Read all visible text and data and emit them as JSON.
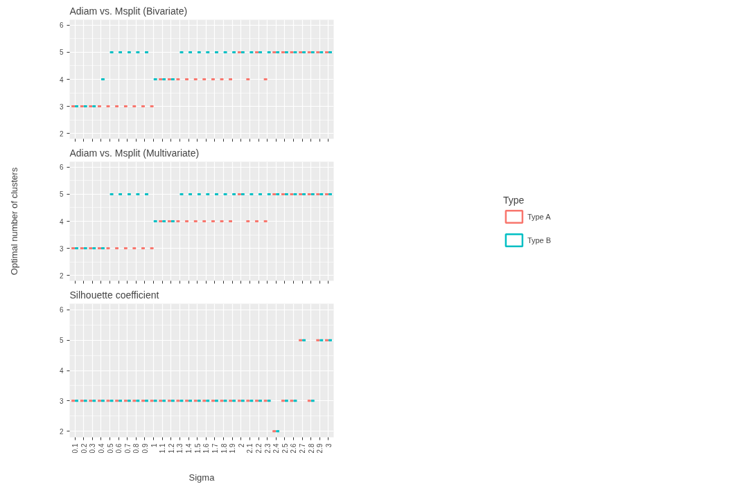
{
  "chart_data": [
    {
      "type": "box",
      "title": "Adiam vs. Msplit (Bivariate)",
      "categories": [
        "0.1",
        "0.2",
        "0.3",
        "0.4",
        "0.5",
        "0.6",
        "0.7",
        "0.8",
        "0.9",
        "1",
        "1.1",
        "1.2",
        "1.3",
        "1.4",
        "1.5",
        "1.6",
        "1.7",
        "1.8",
        "1.9",
        "2",
        "2.1",
        "2.2",
        "2.3",
        "2.4",
        "2.5",
        "2.6",
        "2.7",
        "2.8",
        "2.9",
        "3"
      ],
      "ylim": [
        1.8,
        6.2
      ],
      "yticks": [
        2,
        3,
        4,
        5,
        6
      ],
      "grid": true,
      "tick_labels": "y",
      "series": [
        {
          "color": "#f8766d",
          "boxes": [
            {
              "low": 3,
              "q1": 3,
              "median": 3,
              "q3": 3,
              "high": 3
            },
            {
              "low": 3,
              "q1": 3,
              "median": 3,
              "q3": 3,
              "high": 3
            },
            {
              "low": 3,
              "q1": 3,
              "median": 3,
              "q3": 3,
              "high": 3
            },
            {
              "low": 3,
              "q1": 3,
              "median": 3,
              "q3": 3,
              "high": 3
            },
            {
              "low": 3,
              "q1": 3,
              "median": 3,
              "q3": 3,
              "high": 3
            },
            {
              "low": 3,
              "q1": 3,
              "median": 3,
              "q3": 3,
              "high": 3
            },
            {
              "low": 3,
              "q1": 3,
              "median": 3,
              "q3": 3,
              "high": 3
            },
            {
              "low": 3,
              "q1": 3,
              "median": 3,
              "q3": 3,
              "high": 3
            },
            {
              "low": 3,
              "q1": 3,
              "median": 3,
              "q3": 3,
              "high": 3
            },
            {
              "low": 3,
              "q1": 3,
              "median": 3,
              "q3": 3,
              "high": 3
            },
            {
              "low": 4,
              "q1": 4,
              "median": 4,
              "q3": 4,
              "high": 4
            },
            {
              "low": 4,
              "q1": 4,
              "median": 4,
              "q3": 4,
              "high": 4
            },
            {
              "low": 4,
              "q1": 4,
              "median": 4,
              "q3": 4,
              "high": 4
            },
            {
              "low": 4,
              "q1": 4,
              "median": 4,
              "q3": 4,
              "high": 4
            },
            {
              "low": 4,
              "q1": 4,
              "median": 4,
              "q3": 4,
              "high": 4
            },
            {
              "low": 4,
              "q1": 4,
              "median": 4,
              "q3": 4,
              "high": 4
            },
            {
              "low": 4,
              "q1": 4,
              "median": 4,
              "q3": 4,
              "high": 4
            },
            {
              "low": 4,
              "q1": 4,
              "median": 4,
              "q3": 4,
              "high": 4
            },
            {
              "low": 4,
              "q1": 4,
              "median": 4,
              "q3": 4,
              "high": 4
            },
            {
              "low": 5,
              "q1": 5,
              "median": 5,
              "q3": 5,
              "high": 5
            },
            {
              "low": 4,
              "q1": 4,
              "median": 4,
              "q3": 4,
              "high": 4
            },
            {
              "low": 5,
              "q1": 5,
              "median": 5,
              "q3": 5,
              "high": 5
            },
            {
              "low": 4,
              "q1": 4,
              "median": 4,
              "q3": 4,
              "high": 4
            },
            {
              "low": 5,
              "q1": 5,
              "median": 5,
              "q3": 5,
              "high": 5
            },
            {
              "low": 5,
              "q1": 5,
              "median": 5,
              "q3": 5,
              "high": 5
            },
            {
              "low": 5,
              "q1": 5,
              "median": 5,
              "q3": 5,
              "high": 5
            },
            {
              "low": 5,
              "q1": 5,
              "median": 5,
              "q3": 5,
              "high": 5
            },
            {
              "low": 5,
              "q1": 5,
              "median": 5,
              "q3": 5,
              "high": 5
            },
            {
              "low": 5,
              "q1": 5,
              "median": 5,
              "q3": 5,
              "high": 5
            },
            {
              "low": 5,
              "q1": 5,
              "median": 5,
              "q3": 5,
              "high": 5
            }
          ]
        },
        {
          "color": "#00bfc4",
          "boxes": [
            {
              "low": 3,
              "q1": 3,
              "median": 3,
              "q3": 3,
              "high": 3
            },
            {
              "low": 3,
              "q1": 3,
              "median": 3,
              "q3": 3,
              "high": 3
            },
            {
              "low": 3,
              "q1": 3,
              "median": 3,
              "q3": 3,
              "high": 3
            },
            {
              "low": 4,
              "q1": 4,
              "median": 4,
              "q3": 4,
              "high": 4
            },
            {
              "low": 5,
              "q1": 5,
              "median": 5,
              "q3": 5,
              "high": 5
            },
            {
              "low": 5,
              "q1": 5,
              "median": 5,
              "q3": 5,
              "high": 5
            },
            {
              "low": 5,
              "q1": 5,
              "median": 5,
              "q3": 5,
              "high": 5
            },
            {
              "low": 5,
              "q1": 5,
              "median": 5,
              "q3": 5,
              "high": 5
            },
            {
              "low": 5,
              "q1": 5,
              "median": 5,
              "q3": 5,
              "high": 5
            },
            {
              "low": 4,
              "q1": 4,
              "median": 4,
              "q3": 4,
              "high": 4
            },
            {
              "low": 4,
              "q1": 4,
              "median": 4,
              "q3": 4,
              "high": 4
            },
            {
              "low": 4,
              "q1": 4,
              "median": 4,
              "q3": 4,
              "high": 4
            },
            {
              "low": 5,
              "q1": 5,
              "median": 5,
              "q3": 5,
              "high": 5
            },
            {
              "low": 5,
              "q1": 5,
              "median": 5,
              "q3": 5,
              "high": 5
            },
            {
              "low": 5,
              "q1": 5,
              "median": 5,
              "q3": 5,
              "high": 5
            },
            {
              "low": 5,
              "q1": 5,
              "median": 5,
              "q3": 5,
              "high": 5
            },
            {
              "low": 5,
              "q1": 5,
              "median": 5,
              "q3": 5,
              "high": 5
            },
            {
              "low": 5,
              "q1": 5,
              "median": 5,
              "q3": 5,
              "high": 5
            },
            {
              "low": 5,
              "q1": 5,
              "median": 5,
              "q3": 5,
              "high": 5
            },
            {
              "low": 5,
              "q1": 5,
              "median": 5,
              "q3": 5,
              "high": 5
            },
            {
              "low": 5,
              "q1": 5,
              "median": 5,
              "q3": 5,
              "high": 5
            },
            {
              "low": 5,
              "q1": 5,
              "median": 5,
              "q3": 5,
              "high": 5
            },
            {
              "low": 5,
              "q1": 5,
              "median": 5,
              "q3": 5,
              "high": 5
            },
            {
              "low": 5,
              "q1": 5,
              "median": 5,
              "q3": 5,
              "high": 5
            },
            {
              "low": 5,
              "q1": 5,
              "median": 5,
              "q3": 5,
              "high": 5
            },
            {
              "low": 5,
              "q1": 5,
              "median": 5,
              "q3": 5,
              "high": 5
            },
            {
              "low": 5,
              "q1": 5,
              "median": 5,
              "q3": 5,
              "high": 5
            },
            {
              "low": 5,
              "q1": 5,
              "median": 5,
              "q3": 5,
              "high": 5
            },
            {
              "low": 5,
              "q1": 5,
              "median": 5,
              "q3": 5,
              "high": 5
            },
            {
              "low": 5,
              "q1": 5,
              "median": 5,
              "q3": 5,
              "high": 5
            }
          ]
        }
      ]
    },
    {
      "type": "box",
      "title": "Adiam vs. Msplit (Multivariate)",
      "ylabel": "Optimal number of clusters",
      "legend": "right",
      "legend_title": "Type",
      "categories": [
        "0.1",
        "0.2",
        "0.3",
        "0.4",
        "0.5",
        "0.6",
        "0.7",
        "0.8",
        "0.9",
        "1",
        "1.1",
        "1.2",
        "1.3",
        "1.4",
        "1.5",
        "1.6",
        "1.7",
        "1.8",
        "1.9",
        "2",
        "2.1",
        "2.2",
        "2.3",
        "2.4",
        "2.5",
        "2.6",
        "2.7",
        "2.8",
        "2.9",
        "3"
      ],
      "ylim": [
        1.8,
        6.2
      ],
      "yticks": [
        2,
        3,
        4,
        5,
        6
      ],
      "grid": true,
      "tick_labels": "y",
      "series": [
        {
          "name": "Type A",
          "color": "#f8766d",
          "boxes": [
            {
              "low": 3,
              "q1": 3,
              "median": 3,
              "q3": 3,
              "high": 3
            },
            {
              "low": 3,
              "q1": 3,
              "median": 3,
              "q3": 3,
              "high": 3
            },
            {
              "low": 3,
              "q1": 3,
              "median": 3,
              "q3": 3,
              "high": 3
            },
            {
              "low": 3,
              "q1": 3,
              "median": 3,
              "q3": 3,
              "high": 3
            },
            {
              "low": 3,
              "q1": 3,
              "median": 3,
              "q3": 3,
              "high": 3
            },
            {
              "low": 3,
              "q1": 3,
              "median": 3,
              "q3": 3,
              "high": 3
            },
            {
              "low": 3,
              "q1": 3,
              "median": 3,
              "q3": 3,
              "high": 3
            },
            {
              "low": 3,
              "q1": 3,
              "median": 3,
              "q3": 3,
              "high": 3
            },
            {
              "low": 3,
              "q1": 3,
              "median": 3,
              "q3": 3,
              "high": 3
            },
            {
              "low": 3,
              "q1": 3,
              "median": 3,
              "q3": 3,
              "high": 3
            },
            {
              "low": 4,
              "q1": 4,
              "median": 4,
              "q3": 4,
              "high": 4
            },
            {
              "low": 4,
              "q1": 4,
              "median": 4,
              "q3": 4,
              "high": 4
            },
            {
              "low": 4,
              "q1": 4,
              "median": 4,
              "q3": 4,
              "high": 4
            },
            {
              "low": 4,
              "q1": 4,
              "median": 4,
              "q3": 4,
              "high": 4
            },
            {
              "low": 4,
              "q1": 4,
              "median": 4,
              "q3": 4,
              "high": 4
            },
            {
              "low": 4,
              "q1": 4,
              "median": 4,
              "q3": 4,
              "high": 4
            },
            {
              "low": 4,
              "q1": 4,
              "median": 4,
              "q3": 4,
              "high": 4
            },
            {
              "low": 4,
              "q1": 4,
              "median": 4,
              "q3": 4,
              "high": 4
            },
            {
              "low": 4,
              "q1": 4,
              "median": 4,
              "q3": 4,
              "high": 4
            },
            {
              "low": 5,
              "q1": 5,
              "median": 5,
              "q3": 5,
              "high": 5
            },
            {
              "low": 4,
              "q1": 4,
              "median": 4,
              "q3": 4,
              "high": 4
            },
            {
              "low": 4,
              "q1": 4,
              "median": 4,
              "q3": 4,
              "high": 4
            },
            {
              "low": 4,
              "q1": 4,
              "median": 4,
              "q3": 4,
              "high": 4
            },
            {
              "low": 5,
              "q1": 5,
              "median": 5,
              "q3": 5,
              "high": 5
            },
            {
              "low": 5,
              "q1": 5,
              "median": 5,
              "q3": 5,
              "high": 5
            },
            {
              "low": 5,
              "q1": 5,
              "median": 5,
              "q3": 5,
              "high": 5
            },
            {
              "low": 5,
              "q1": 5,
              "median": 5,
              "q3": 5,
              "high": 5
            },
            {
              "low": 5,
              "q1": 5,
              "median": 5,
              "q3": 5,
              "high": 5
            },
            {
              "low": 5,
              "q1": 5,
              "median": 5,
              "q3": 5,
              "high": 5
            },
            {
              "low": 5,
              "q1": 5,
              "median": 5,
              "q3": 5,
              "high": 5
            }
          ]
        },
        {
          "name": "Type B",
          "color": "#00bfc4",
          "boxes": [
            {
              "low": 3,
              "q1": 3,
              "median": 3,
              "q3": 3,
              "high": 3
            },
            {
              "low": 3,
              "q1": 3,
              "median": 3,
              "q3": 3,
              "high": 3
            },
            {
              "low": 3,
              "q1": 3,
              "median": 3,
              "q3": 3,
              "high": 3
            },
            {
              "low": 3,
              "q1": 3,
              "median": 3,
              "q3": 3,
              "high": 3
            },
            {
              "low": 5,
              "q1": 5,
              "median": 5,
              "q3": 5,
              "high": 5
            },
            {
              "low": 5,
              "q1": 5,
              "median": 5,
              "q3": 5,
              "high": 5
            },
            {
              "low": 5,
              "q1": 5,
              "median": 5,
              "q3": 5,
              "high": 5
            },
            {
              "low": 5,
              "q1": 5,
              "median": 5,
              "q3": 5,
              "high": 5
            },
            {
              "low": 5,
              "q1": 5,
              "median": 5,
              "q3": 5,
              "high": 5
            },
            {
              "low": 4,
              "q1": 4,
              "median": 4,
              "q3": 4,
              "high": 4
            },
            {
              "low": 4,
              "q1": 4,
              "median": 4,
              "q3": 4,
              "high": 4
            },
            {
              "low": 4,
              "q1": 4,
              "median": 4,
              "q3": 4,
              "high": 4
            },
            {
              "low": 5,
              "q1": 5,
              "median": 5,
              "q3": 5,
              "high": 5
            },
            {
              "low": 5,
              "q1": 5,
              "median": 5,
              "q3": 5,
              "high": 5
            },
            {
              "low": 5,
              "q1": 5,
              "median": 5,
              "q3": 5,
              "high": 5
            },
            {
              "low": 5,
              "q1": 5,
              "median": 5,
              "q3": 5,
              "high": 5
            },
            {
              "low": 5,
              "q1": 5,
              "median": 5,
              "q3": 5,
              "high": 5
            },
            {
              "low": 5,
              "q1": 5,
              "median": 5,
              "q3": 5,
              "high": 5
            },
            {
              "low": 5,
              "q1": 5,
              "median": 5,
              "q3": 5,
              "high": 5
            },
            {
              "low": 5,
              "q1": 5,
              "median": 5,
              "q3": 5,
              "high": 5
            },
            {
              "low": 5,
              "q1": 5,
              "median": 5,
              "q3": 5,
              "high": 5
            },
            {
              "low": 5,
              "q1": 5,
              "median": 5,
              "q3": 5,
              "high": 5
            },
            {
              "low": 5,
              "q1": 5,
              "median": 5,
              "q3": 5,
              "high": 5
            },
            {
              "low": 5,
              "q1": 5,
              "median": 5,
              "q3": 5,
              "high": 5
            },
            {
              "low": 5,
              "q1": 5,
              "median": 5,
              "q3": 5,
              "high": 5
            },
            {
              "low": 5,
              "q1": 5,
              "median": 5,
              "q3": 5,
              "high": 5
            },
            {
              "low": 5,
              "q1": 5,
              "median": 5,
              "q3": 5,
              "high": 5
            },
            {
              "low": 5,
              "q1": 5,
              "median": 5,
              "q3": 5,
              "high": 5
            },
            {
              "low": 5,
              "q1": 5,
              "median": 5,
              "q3": 5,
              "high": 5
            },
            {
              "low": 5,
              "q1": 5,
              "median": 5,
              "q3": 5,
              "high": 5
            }
          ]
        }
      ]
    },
    {
      "type": "box",
      "title": "Silhouette coefficient",
      "xlabel": "Sigma",
      "categories": [
        "0.1",
        "0.2",
        "0.3",
        "0.4",
        "0.5",
        "0.6",
        "0.7",
        "0.8",
        "0.9",
        "1",
        "1.1",
        "1.2",
        "1.3",
        "1.4",
        "1.5",
        "1.6",
        "1.7",
        "1.8",
        "1.9",
        "2",
        "2.1",
        "2.2",
        "2.3",
        "2.4",
        "2.5",
        "2.6",
        "2.7",
        "2.8",
        "2.9",
        "3"
      ],
      "ylim": [
        1.8,
        6.2
      ],
      "yticks": [
        2,
        3,
        4,
        5,
        6
      ],
      "grid": true,
      "series": [
        {
          "color": "#f8766d",
          "boxes": [
            {
              "low": 3,
              "q1": 3,
              "median": 3,
              "q3": 3,
              "high": 3
            },
            {
              "low": 3,
              "q1": 3,
              "median": 3,
              "q3": 3,
              "high": 3
            },
            {
              "low": 3,
              "q1": 3,
              "median": 3,
              "q3": 3,
              "high": 3
            },
            {
              "low": 3,
              "q1": 3,
              "median": 3,
              "q3": 3,
              "high": 3
            },
            {
              "low": 3,
              "q1": 3,
              "median": 3,
              "q3": 3,
              "high": 3
            },
            {
              "low": 3,
              "q1": 3,
              "median": 3,
              "q3": 3,
              "high": 3
            },
            {
              "low": 3,
              "q1": 3,
              "median": 3,
              "q3": 3,
              "high": 3
            },
            {
              "low": 3,
              "q1": 3,
              "median": 3,
              "q3": 3,
              "high": 3
            },
            {
              "low": 3,
              "q1": 3,
              "median": 3,
              "q3": 3,
              "high": 3
            },
            {
              "low": 3,
              "q1": 3,
              "median": 3,
              "q3": 3,
              "high": 3
            },
            {
              "low": 3,
              "q1": 3,
              "median": 3,
              "q3": 3,
              "high": 3
            },
            {
              "low": 3,
              "q1": 3,
              "median": 3,
              "q3": 3,
              "high": 3
            },
            {
              "low": 3,
              "q1": 3,
              "median": 3,
              "q3": 3,
              "high": 3
            },
            {
              "low": 3,
              "q1": 3,
              "median": 3,
              "q3": 3,
              "high": 3
            },
            {
              "low": 3,
              "q1": 3,
              "median": 3,
              "q3": 3,
              "high": 3
            },
            {
              "low": 3,
              "q1": 3,
              "median": 3,
              "q3": 3,
              "high": 3
            },
            {
              "low": 3,
              "q1": 3,
              "median": 3,
              "q3": 3,
              "high": 3
            },
            {
              "low": 3,
              "q1": 3,
              "median": 3,
              "q3": 3,
              "high": 3
            },
            {
              "low": 3,
              "q1": 3,
              "median": 3,
              "q3": 3,
              "high": 3
            },
            {
              "low": 3,
              "q1": 3,
              "median": 3,
              "q3": 3,
              "high": 3
            },
            {
              "low": 3,
              "q1": 3,
              "median": 3,
              "q3": 3,
              "high": 3
            },
            {
              "low": 3,
              "q1": 3,
              "median": 3,
              "q3": 3,
              "high": 3
            },
            {
              "low": 3,
              "q1": 3,
              "median": 3,
              "q3": 3,
              "high": 3
            },
            {
              "low": 2,
              "q1": 2,
              "median": 2,
              "q3": 2,
              "high": 2
            },
            {
              "low": 3,
              "q1": 3,
              "median": 3,
              "q3": 3,
              "high": 3
            },
            {
              "low": 3,
              "q1": 3,
              "median": 3,
              "q3": 3,
              "high": 3
            },
            {
              "low": 5,
              "q1": 5,
              "median": 5,
              "q3": 5,
              "high": 5
            },
            {
              "low": 3,
              "q1": 3,
              "median": 3,
              "q3": 3,
              "high": 3
            },
            {
              "low": 5,
              "q1": 5,
              "median": 5,
              "q3": 5,
              "high": 5
            },
            {
              "low": 5,
              "q1": 5,
              "median": 5,
              "q3": 5,
              "high": 5
            }
          ]
        },
        {
          "color": "#00bfc4",
          "boxes": [
            {
              "low": 3,
              "q1": 3,
              "median": 3,
              "q3": 3,
              "high": 3
            },
            {
              "low": 3,
              "q1": 3,
              "median": 3,
              "q3": 3,
              "high": 3
            },
            {
              "low": 3,
              "q1": 3,
              "median": 3,
              "q3": 3,
              "high": 3
            },
            {
              "low": 3,
              "q1": 3,
              "median": 3,
              "q3": 3,
              "high": 3
            },
            {
              "low": 3,
              "q1": 3,
              "median": 3,
              "q3": 3,
              "high": 3
            },
            {
              "low": 3,
              "q1": 3,
              "median": 3,
              "q3": 3,
              "high": 3
            },
            {
              "low": 3,
              "q1": 3,
              "median": 3,
              "q3": 3,
              "high": 3
            },
            {
              "low": 3,
              "q1": 3,
              "median": 3,
              "q3": 3,
              "high": 3
            },
            {
              "low": 3,
              "q1": 3,
              "median": 3,
              "q3": 3,
              "high": 3
            },
            {
              "low": 3,
              "q1": 3,
              "median": 3,
              "q3": 3,
              "high": 3
            },
            {
              "low": 3,
              "q1": 3,
              "median": 3,
              "q3": 3,
              "high": 3
            },
            {
              "low": 3,
              "q1": 3,
              "median": 3,
              "q3": 3,
              "high": 3
            },
            {
              "low": 3,
              "q1": 3,
              "median": 3,
              "q3": 3,
              "high": 3
            },
            {
              "low": 3,
              "q1": 3,
              "median": 3,
              "q3": 3,
              "high": 3
            },
            {
              "low": 3,
              "q1": 3,
              "median": 3,
              "q3": 3,
              "high": 3
            },
            {
              "low": 3,
              "q1": 3,
              "median": 3,
              "q3": 3,
              "high": 3
            },
            {
              "low": 3,
              "q1": 3,
              "median": 3,
              "q3": 3,
              "high": 3
            },
            {
              "low": 3,
              "q1": 3,
              "median": 3,
              "q3": 3,
              "high": 3
            },
            {
              "low": 3,
              "q1": 3,
              "median": 3,
              "q3": 3,
              "high": 3
            },
            {
              "low": 3,
              "q1": 3,
              "median": 3,
              "q3": 3,
              "high": 3
            },
            {
              "low": 3,
              "q1": 3,
              "median": 3,
              "q3": 3,
              "high": 3
            },
            {
              "low": 3,
              "q1": 3,
              "median": 3,
              "q3": 3,
              "high": 3
            },
            {
              "low": 3,
              "q1": 3,
              "median": 3,
              "q3": 3,
              "high": 3
            },
            {
              "low": 2,
              "q1": 2,
              "median": 2,
              "q3": 2,
              "high": 2
            },
            {
              "low": 3,
              "q1": 3,
              "median": 3,
              "q3": 3,
              "high": 3
            },
            {
              "low": 3,
              "q1": 3,
              "median": 3,
              "q3": 3,
              "high": 3
            },
            {
              "low": 5,
              "q1": 5,
              "median": 5,
              "q3": 5,
              "high": 5
            },
            {
              "low": 3,
              "q1": 3,
              "median": 3,
              "q3": 3,
              "high": 3
            },
            {
              "low": 5,
              "q1": 5,
              "median": 5,
              "q3": 5,
              "high": 5
            },
            {
              "low": 5,
              "q1": 5,
              "median": 5,
              "q3": 5,
              "high": 5
            }
          ]
        }
      ]
    }
  ]
}
